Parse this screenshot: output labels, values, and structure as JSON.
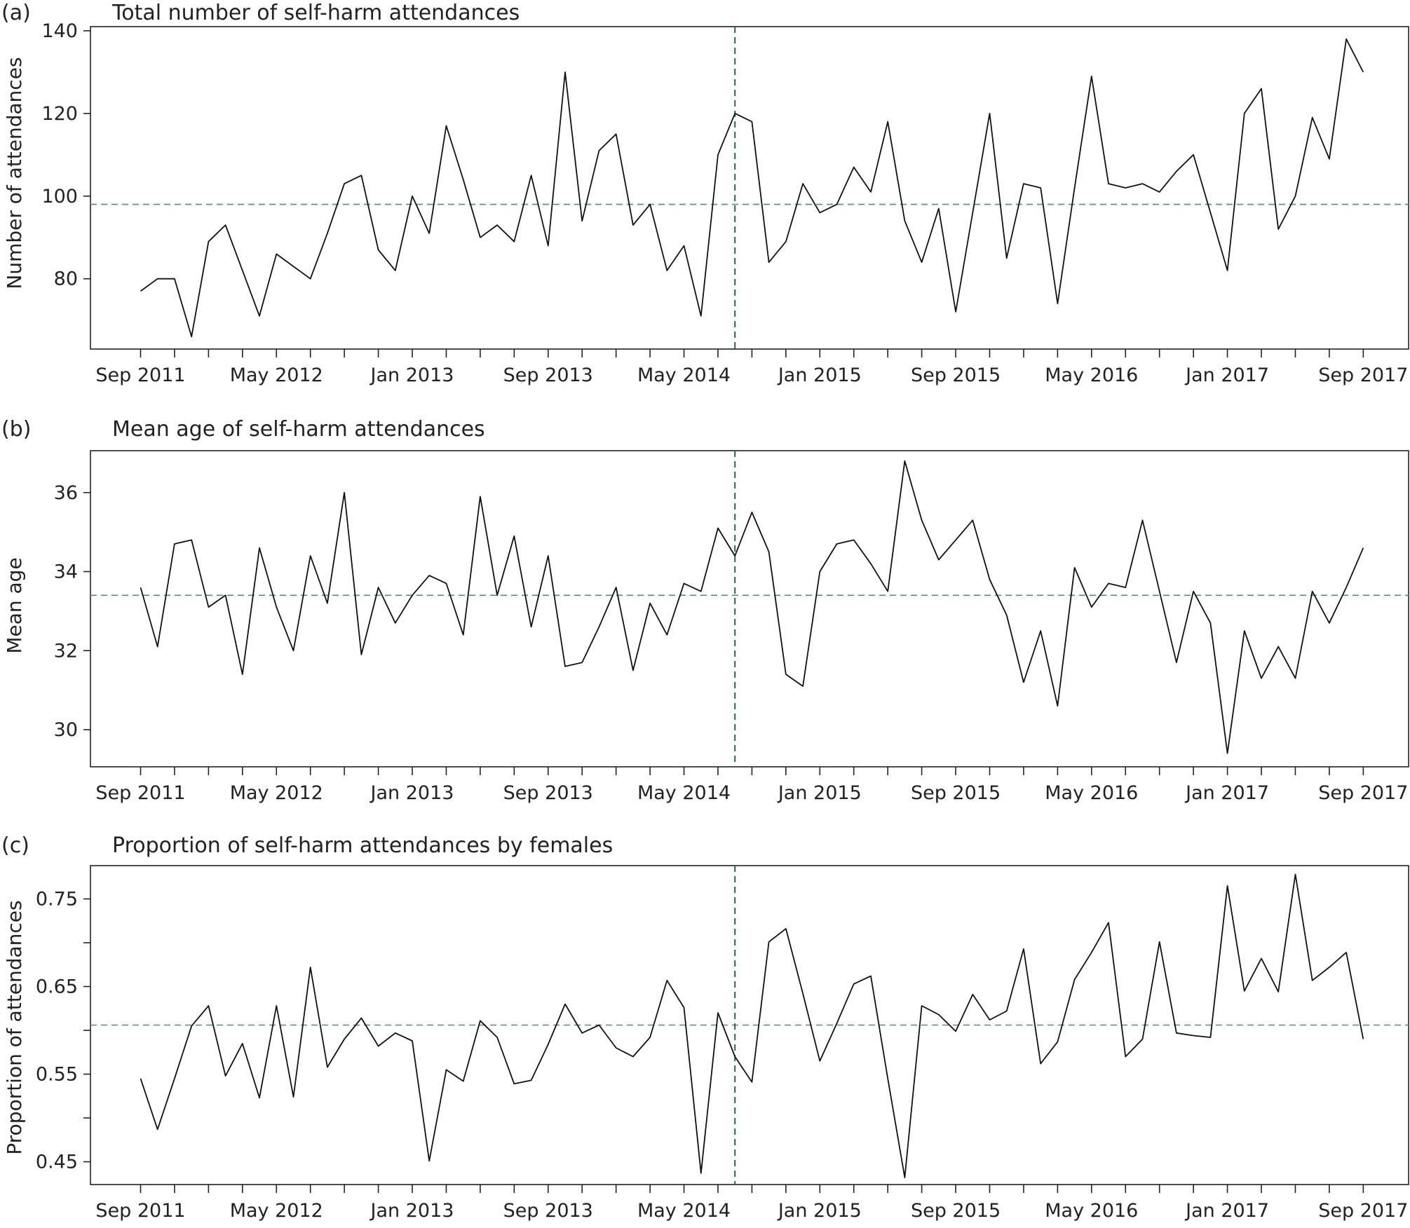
{
  "colors": {
    "line": "#111111",
    "mean_line": "#5a8a78",
    "event_line": "#1f6b4f",
    "frame": "#222222"
  },
  "chart_data": [
    {
      "type": "line",
      "panel": "(a)",
      "title": "Total number of self-harm attendances",
      "ylabel": "Number of attendances",
      "xlabel": "",
      "ylim": [
        63,
        141
      ],
      "yticks": [
        80,
        100,
        120,
        140
      ],
      "ytick_labels": [
        "80",
        "100",
        "120",
        "140"
      ],
      "xtick_labels": [
        "Sep 2011",
        "May 2012",
        "Jan 2013",
        "Sep 2013",
        "May 2014",
        "Jan 2015",
        "Sep 2015",
        "May 2016",
        "Jan 2017",
        "Sep 2017"
      ],
      "month_start": "Sep 2011",
      "mean_value": 98,
      "event_month": "Aug 2014",
      "values": [
        77,
        80,
        80,
        66,
        89,
        93,
        82,
        71,
        86,
        83,
        80,
        91,
        103,
        105,
        87,
        82,
        100,
        91,
        117,
        104,
        90,
        93,
        89,
        105,
        88,
        130,
        94,
        111,
        115,
        93,
        98,
        82,
        88,
        71,
        110,
        120,
        118,
        84,
        89,
        103,
        96,
        98,
        107,
        101,
        118,
        94,
        84,
        97,
        72,
        96,
        120,
        85,
        103,
        102,
        74,
        102,
        129,
        103,
        102,
        103,
        101,
        106,
        110,
        96,
        82,
        120,
        126,
        92,
        100,
        119,
        109,
        138,
        130
      ]
    },
    {
      "type": "line",
      "panel": "(b)",
      "title": "Mean age of self-harm attendances",
      "ylabel": "Mean age",
      "xlabel": "",
      "ylim": [
        29.06,
        37.06
      ],
      "yticks": [
        30,
        32,
        34,
        36
      ],
      "ytick_labels": [
        "30",
        "32",
        "34",
        "36"
      ],
      "xtick_labels": [
        "Sep 2011",
        "May 2012",
        "Jan 2013",
        "Sep 2013",
        "May 2014",
        "Jan 2015",
        "Sep 2015",
        "May 2016",
        "Jan 2017",
        "Sep 2017"
      ],
      "month_start": "Sep 2011",
      "mean_value": 33.4,
      "event_month": "Aug 2014",
      "values": [
        33.6,
        32.1,
        34.7,
        34.8,
        33.1,
        33.4,
        31.4,
        34.6,
        33.1,
        32.0,
        34.4,
        33.2,
        36.0,
        31.9,
        33.6,
        32.7,
        33.4,
        33.9,
        33.7,
        32.4,
        35.9,
        33.4,
        34.9,
        32.6,
        34.4,
        31.6,
        31.7,
        32.6,
        33.6,
        31.5,
        33.2,
        32.4,
        33.7,
        33.5,
        35.1,
        34.4,
        35.5,
        34.5,
        31.4,
        31.1,
        34.0,
        34.7,
        34.8,
        34.2,
        33.5,
        36.8,
        35.3,
        34.3,
        34.8,
        35.3,
        33.8,
        32.9,
        31.2,
        32.5,
        30.6,
        34.1,
        33.1,
        33.7,
        33.6,
        35.3,
        33.5,
        31.7,
        33.5,
        32.7,
        29.4,
        32.5,
        31.3,
        32.1,
        31.3,
        33.5,
        32.7,
        33.6,
        34.6
      ]
    },
    {
      "type": "line",
      "panel": "(c)",
      "title": "Proportion of self-harm attendances by females",
      "ylabel": "Proportion of attendances",
      "xlabel": "",
      "ylim": [
        0.424,
        0.788
      ],
      "yticks": [
        0.45,
        0.5,
        0.55,
        0.6,
        0.65,
        0.7,
        0.75
      ],
      "ytick_labels": [
        "0.45",
        "",
        "0.55",
        "",
        "0.65",
        "",
        "0.75"
      ],
      "xtick_labels": [
        "Sep 2011",
        "May 2012",
        "Jan 2013",
        "Sep 2013",
        "May 2014",
        "Jan 2015",
        "Sep 2015",
        "May 2016",
        "Jan 2017",
        "Sep 2017"
      ],
      "month_start": "Sep 2011",
      "mean_value": 0.606,
      "event_month": "Aug 2014",
      "values": [
        0.545,
        0.487,
        0.545,
        0.605,
        0.628,
        0.548,
        0.585,
        0.523,
        0.628,
        0.524,
        0.672,
        0.558,
        0.59,
        0.614,
        0.582,
        0.597,
        0.588,
        0.451,
        0.555,
        0.542,
        0.611,
        0.592,
        0.539,
        0.543,
        0.584,
        0.63,
        0.597,
        0.606,
        0.58,
        0.57,
        0.592,
        0.657,
        0.626,
        0.437,
        0.62,
        0.57,
        0.541,
        0.701,
        0.716,
        0.642,
        0.565,
        0.608,
        0.653,
        0.662,
        0.545,
        0.432,
        0.628,
        0.618,
        0.599,
        0.641,
        0.612,
        0.622,
        0.693,
        0.562,
        0.587,
        0.658,
        0.689,
        0.723,
        0.57,
        0.59,
        0.701,
        0.597,
        0.594,
        0.592,
        0.765,
        0.645,
        0.682,
        0.644,
        0.778,
        0.657,
        0.672,
        0.689,
        0.59
      ]
    }
  ]
}
